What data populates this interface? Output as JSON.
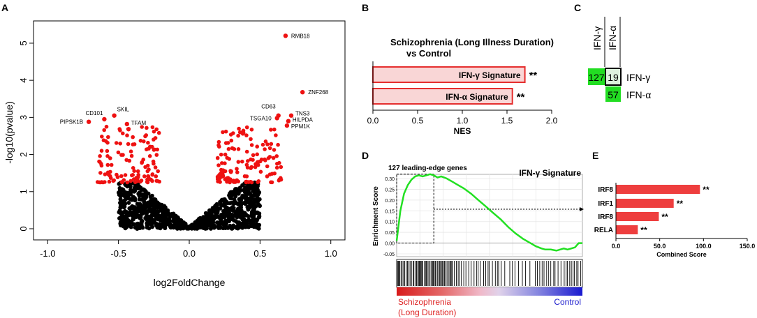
{
  "panels": {
    "a": "A",
    "b": "B",
    "c": "C",
    "d": "D",
    "e": "E"
  },
  "colors": {
    "sig": "#ee1111",
    "bulk": "#000000",
    "bar_fill": "#f9d6d6",
    "bar_stroke": "#e52e2e",
    "green": "#22dd22",
    "bar_e": "#ee3e3e"
  },
  "chart_data": [
    {
      "id": "A",
      "type": "scatter",
      "title": "",
      "xlabel": "log2FoldChange",
      "ylabel": "-log10(pvalue)",
      "xlim": [
        -1.0,
        1.0
      ],
      "ylim": [
        0,
        5.5
      ],
      "xticks": [
        "-1.0",
        "-0.5",
        "0.0",
        "0.5",
        "1.0"
      ],
      "yticks": [
        "0",
        "1",
        "2",
        "3",
        "4",
        "5"
      ],
      "labeled_points": [
        {
          "label": "RMB18",
          "x": 0.68,
          "y": 5.2
        },
        {
          "label": "ZNF268",
          "x": 0.8,
          "y": 3.68
        },
        {
          "label": "CD63",
          "x": 0.63,
          "y": 3.05
        },
        {
          "label": "TSGA10",
          "x": 0.62,
          "y": 2.98
        },
        {
          "label": "TNS3",
          "x": 0.72,
          "y": 3.05
        },
        {
          "label": "HILPDA",
          "x": 0.7,
          "y": 2.9
        },
        {
          "label": "PPM1K",
          "x": 0.69,
          "y": 2.78
        },
        {
          "label": "CD101",
          "x": -0.6,
          "y": 2.95
        },
        {
          "label": "SKIL",
          "x": -0.53,
          "y": 3.05
        },
        {
          "label": "TFAM",
          "x": -0.44,
          "y": 2.82
        },
        {
          "label": "PIPSK1B",
          "x": -0.71,
          "y": 2.88
        }
      ],
      "significance_threshold_y": 1.25
    },
    {
      "id": "B",
      "type": "bar",
      "orientation": "horizontal",
      "title_lines": [
        "Schizophrenia (Long Illness Duration)",
        "vs Control"
      ],
      "xlabel": "NES",
      "xlim": [
        0,
        2.0
      ],
      "xticks": [
        "0.0",
        "0.5",
        "1.0",
        "1.5",
        "2.0"
      ],
      "categories": [
        "IFN-γ Signature",
        "IFN-α Signature"
      ],
      "values": [
        1.7,
        1.56
      ],
      "annotations": [
        "**",
        "**"
      ]
    },
    {
      "id": "C",
      "type": "table",
      "col_headers": [
        "IFN-γ",
        "IFN-α"
      ],
      "row_labels": [
        "IFN-γ",
        "IFN-α"
      ],
      "cells": [
        {
          "row": 0,
          "col": 0,
          "value": "127"
        },
        {
          "row": 0,
          "col": 1,
          "value": "19"
        },
        {
          "row": 1,
          "col": 1,
          "value": "57"
        }
      ]
    },
    {
      "id": "D",
      "type": "line",
      "title": "IFN-γ Signature",
      "annotation": "127 leading-edge genes",
      "ylabel": "Enrichment Score",
      "ylim": [
        -0.05,
        0.3
      ],
      "yticks": [
        "0.30",
        "0.25",
        "0.20",
        "0.15",
        "0.10",
        "0.05",
        "0.00",
        "-0.05"
      ],
      "x": [
        0,
        0.02,
        0.04,
        0.06,
        0.08,
        0.1,
        0.12,
        0.14,
        0.16,
        0.18,
        0.2,
        0.22,
        0.24,
        0.27,
        0.3,
        0.33,
        0.36,
        0.4,
        0.44,
        0.48,
        0.52,
        0.56,
        0.6,
        0.64,
        0.68,
        0.72,
        0.75,
        0.78,
        0.8,
        0.83,
        0.86,
        0.88,
        0.9,
        0.92,
        0.94,
        0.96,
        0.98,
        1.0
      ],
      "y": [
        0.01,
        0.15,
        0.23,
        0.27,
        0.295,
        0.31,
        0.315,
        0.31,
        0.315,
        0.32,
        0.315,
        0.305,
        0.31,
        0.3,
        0.285,
        0.27,
        0.255,
        0.23,
        0.2,
        0.17,
        0.14,
        0.11,
        0.075,
        0.045,
        0.02,
        0.0,
        -0.015,
        -0.025,
        -0.03,
        -0.03,
        -0.035,
        -0.03,
        -0.025,
        -0.03,
        -0.025,
        -0.02,
        0.0,
        0.0
      ],
      "leading_edge_fraction": 0.2,
      "left_label_lines": [
        "Schizophrenia",
        "(Long Duration)"
      ],
      "right_label": "Control"
    },
    {
      "id": "E",
      "type": "bar",
      "orientation": "horizontal",
      "xlabel": "Combined Score",
      "xlim": [
        0,
        150
      ],
      "xticks": [
        "0.0",
        "50.0",
        "100.0",
        "150.0"
      ],
      "categories": [
        "IRF8",
        "IRF1",
        "IRF8",
        "RELA"
      ],
      "values": [
        96,
        66,
        49,
        25
      ],
      "annotations": [
        "**",
        "**",
        "**",
        "**"
      ]
    }
  ]
}
